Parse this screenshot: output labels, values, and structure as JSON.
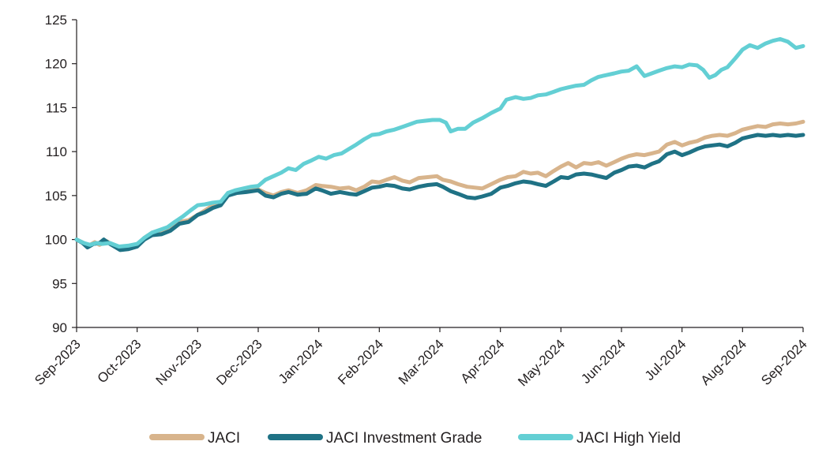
{
  "chart_data": {
    "type": "line",
    "title": "",
    "xlabel": "",
    "ylabel": "",
    "ylim": [
      90,
      125
    ],
    "yticks": [
      90,
      95,
      100,
      105,
      110,
      115,
      120,
      125
    ],
    "xticks": [
      "Sep-2023",
      "Oct-2023",
      "Nov-2023",
      "Dec-2023",
      "Jan-2024",
      "Feb-2024",
      "Mar-2024",
      "Apr-2024",
      "May-2024",
      "Jun-2024",
      "Jul-2024",
      "Aug-2024",
      "Sep-2024"
    ],
    "grid": false,
    "legend_position": "bottom",
    "series": [
      {
        "name": "JACI",
        "color": "#d8b48c",
        "values": [
          [
            0,
            100
          ],
          [
            0.12,
            99.6
          ],
          [
            0.2,
            99.3
          ],
          [
            0.3,
            99.7
          ],
          [
            0.38,
            99.4
          ],
          [
            0.5,
            99.8
          ],
          [
            0.62,
            99.3
          ],
          [
            0.75,
            99
          ],
          [
            0.85,
            99.1
          ],
          [
            1,
            99.4
          ],
          [
            1.12,
            100.2
          ],
          [
            1.25,
            100.8
          ],
          [
            1.4,
            101
          ],
          [
            1.55,
            101.2
          ],
          [
            1.7,
            102
          ],
          [
            1.85,
            102.2
          ],
          [
            2,
            102.8
          ],
          [
            2.12,
            103.3
          ],
          [
            2.25,
            103.9
          ],
          [
            2.38,
            104.1
          ],
          [
            2.5,
            105.2
          ],
          [
            2.65,
            105.5
          ],
          [
            2.8,
            105.6
          ],
          [
            3,
            105.7
          ],
          [
            3.12,
            105.3
          ],
          [
            3.25,
            105
          ],
          [
            3.38,
            105.4
          ],
          [
            3.5,
            105.6
          ],
          [
            3.65,
            105.3
          ],
          [
            3.8,
            105.6
          ],
          [
            3.95,
            106.2
          ],
          [
            4.05,
            106.1
          ],
          [
            4.2,
            106
          ],
          [
            4.35,
            105.8
          ],
          [
            4.5,
            105.9
          ],
          [
            4.62,
            105.6
          ],
          [
            4.75,
            106
          ],
          [
            4.88,
            106.6
          ],
          [
            5,
            106.5
          ],
          [
            5.12,
            106.8
          ],
          [
            5.25,
            107.1
          ],
          [
            5.38,
            106.7
          ],
          [
            5.5,
            106.5
          ],
          [
            5.65,
            107
          ],
          [
            5.8,
            107.1
          ],
          [
            5.95,
            107.2
          ],
          [
            6.05,
            106.8
          ],
          [
            6.18,
            106.6
          ],
          [
            6.3,
            106.3
          ],
          [
            6.45,
            106
          ],
          [
            6.58,
            105.9
          ],
          [
            6.7,
            105.8
          ],
          [
            6.85,
            106.3
          ],
          [
            7,
            106.8
          ],
          [
            7.12,
            107.1
          ],
          [
            7.25,
            107.2
          ],
          [
            7.38,
            107.7
          ],
          [
            7.5,
            107.5
          ],
          [
            7.62,
            107.6
          ],
          [
            7.75,
            107.2
          ],
          [
            7.88,
            107.8
          ],
          [
            8,
            108.3
          ],
          [
            8.12,
            108.7
          ],
          [
            8.25,
            108.2
          ],
          [
            8.38,
            108.7
          ],
          [
            8.5,
            108.6
          ],
          [
            8.62,
            108.8
          ],
          [
            8.75,
            108.4
          ],
          [
            8.88,
            108.8
          ],
          [
            9,
            109.2
          ],
          [
            9.12,
            109.5
          ],
          [
            9.25,
            109.7
          ],
          [
            9.38,
            109.6
          ],
          [
            9.5,
            109.8
          ],
          [
            9.62,
            110
          ],
          [
            9.75,
            110.8
          ],
          [
            9.88,
            111.1
          ],
          [
            10,
            110.7
          ],
          [
            10.12,
            111
          ],
          [
            10.25,
            111.2
          ],
          [
            10.38,
            111.6
          ],
          [
            10.5,
            111.8
          ],
          [
            10.62,
            111.9
          ],
          [
            10.75,
            111.8
          ],
          [
            10.88,
            112.1
          ],
          [
            11,
            112.5
          ],
          [
            11.12,
            112.7
          ],
          [
            11.25,
            112.9
          ],
          [
            11.38,
            112.8
          ],
          [
            11.5,
            113.1
          ],
          [
            11.62,
            113.2
          ],
          [
            11.75,
            113.1
          ],
          [
            11.88,
            113.2
          ],
          [
            12,
            113.4
          ]
        ]
      },
      {
        "name": "JACI Investment Grade",
        "color": "#1f7285",
        "values": [
          [
            0,
            100
          ],
          [
            0.1,
            99.6
          ],
          [
            0.18,
            99.1
          ],
          [
            0.28,
            99.5
          ],
          [
            0.38,
            99.6
          ],
          [
            0.45,
            100
          ],
          [
            0.55,
            99.5
          ],
          [
            0.65,
            99.1
          ],
          [
            0.72,
            98.8
          ],
          [
            0.85,
            98.9
          ],
          [
            1,
            99.2
          ],
          [
            1.12,
            100
          ],
          [
            1.25,
            100.5
          ],
          [
            1.4,
            100.6
          ],
          [
            1.55,
            101
          ],
          [
            1.7,
            101.8
          ],
          [
            1.85,
            102
          ],
          [
            2,
            102.8
          ],
          [
            2.12,
            103.1
          ],
          [
            2.25,
            103.6
          ],
          [
            2.38,
            103.9
          ],
          [
            2.5,
            105
          ],
          [
            2.65,
            105.3
          ],
          [
            2.8,
            105.4
          ],
          [
            3,
            105.6
          ],
          [
            3.12,
            105
          ],
          [
            3.25,
            104.8
          ],
          [
            3.38,
            105.2
          ],
          [
            3.5,
            105.4
          ],
          [
            3.65,
            105.1
          ],
          [
            3.8,
            105.2
          ],
          [
            3.95,
            105.8
          ],
          [
            4.05,
            105.6
          ],
          [
            4.2,
            105.2
          ],
          [
            4.35,
            105.4
          ],
          [
            4.5,
            105.2
          ],
          [
            4.62,
            105.1
          ],
          [
            4.75,
            105.5
          ],
          [
            4.88,
            105.9
          ],
          [
            5,
            106
          ],
          [
            5.12,
            106.2
          ],
          [
            5.25,
            106.1
          ],
          [
            5.38,
            105.8
          ],
          [
            5.5,
            105.7
          ],
          [
            5.65,
            106
          ],
          [
            5.8,
            106.2
          ],
          [
            5.95,
            106.3
          ],
          [
            6.05,
            106
          ],
          [
            6.18,
            105.5
          ],
          [
            6.3,
            105.2
          ],
          [
            6.45,
            104.8
          ],
          [
            6.58,
            104.7
          ],
          [
            6.7,
            104.9
          ],
          [
            6.85,
            105.2
          ],
          [
            7,
            105.9
          ],
          [
            7.12,
            106.1
          ],
          [
            7.25,
            106.4
          ],
          [
            7.38,
            106.6
          ],
          [
            7.5,
            106.5
          ],
          [
            7.62,
            106.3
          ],
          [
            7.75,
            106.1
          ],
          [
            7.88,
            106.6
          ],
          [
            8,
            107.1
          ],
          [
            8.12,
            107
          ],
          [
            8.25,
            107.4
          ],
          [
            8.38,
            107.5
          ],
          [
            8.5,
            107.4
          ],
          [
            8.62,
            107.2
          ],
          [
            8.75,
            107
          ],
          [
            8.88,
            107.6
          ],
          [
            9,
            107.9
          ],
          [
            9.12,
            108.3
          ],
          [
            9.25,
            108.4
          ],
          [
            9.38,
            108.2
          ],
          [
            9.5,
            108.6
          ],
          [
            9.62,
            108.9
          ],
          [
            9.75,
            109.7
          ],
          [
            9.88,
            110
          ],
          [
            10,
            109.6
          ],
          [
            10.12,
            109.9
          ],
          [
            10.25,
            110.3
          ],
          [
            10.38,
            110.6
          ],
          [
            10.5,
            110.7
          ],
          [
            10.62,
            110.8
          ],
          [
            10.75,
            110.6
          ],
          [
            10.88,
            111
          ],
          [
            11,
            111.5
          ],
          [
            11.12,
            111.7
          ],
          [
            11.25,
            111.9
          ],
          [
            11.38,
            111.8
          ],
          [
            11.5,
            111.9
          ],
          [
            11.62,
            111.8
          ],
          [
            11.75,
            111.9
          ],
          [
            11.88,
            111.8
          ],
          [
            12,
            111.9
          ]
        ]
      },
      {
        "name": "JACI High Yield",
        "color": "#63cfd4",
        "values": [
          [
            0,
            100
          ],
          [
            0.12,
            99.6
          ],
          [
            0.22,
            99.4
          ],
          [
            0.32,
            99.6
          ],
          [
            0.42,
            99.5
          ],
          [
            0.55,
            99.6
          ],
          [
            0.7,
            99.2
          ],
          [
            0.85,
            99.3
          ],
          [
            1,
            99.5
          ],
          [
            1.12,
            100.2
          ],
          [
            1.25,
            100.8
          ],
          [
            1.38,
            101.1
          ],
          [
            1.5,
            101.4
          ],
          [
            1.62,
            102
          ],
          [
            1.75,
            102.6
          ],
          [
            1.88,
            103.3
          ],
          [
            2,
            103.9
          ],
          [
            2.12,
            104
          ],
          [
            2.25,
            104.2
          ],
          [
            2.38,
            104.3
          ],
          [
            2.5,
            105.3
          ],
          [
            2.62,
            105.6
          ],
          [
            2.75,
            105.8
          ],
          [
            2.88,
            106
          ],
          [
            3,
            106.1
          ],
          [
            3.12,
            106.8
          ],
          [
            3.25,
            107.2
          ],
          [
            3.38,
            107.6
          ],
          [
            3.5,
            108.1
          ],
          [
            3.62,
            107.9
          ],
          [
            3.75,
            108.6
          ],
          [
            3.88,
            109
          ],
          [
            4,
            109.4
          ],
          [
            4.12,
            109.2
          ],
          [
            4.25,
            109.6
          ],
          [
            4.38,
            109.8
          ],
          [
            4.5,
            110.3
          ],
          [
            4.62,
            110.8
          ],
          [
            4.75,
            111.4
          ],
          [
            4.88,
            111.9
          ],
          [
            5,
            112
          ],
          [
            5.12,
            112.3
          ],
          [
            5.25,
            112.5
          ],
          [
            5.38,
            112.8
          ],
          [
            5.5,
            113.1
          ],
          [
            5.62,
            113.4
          ],
          [
            5.75,
            113.5
          ],
          [
            5.88,
            113.6
          ],
          [
            6,
            113.6
          ],
          [
            6.1,
            113.3
          ],
          [
            6.18,
            112.3
          ],
          [
            6.3,
            112.6
          ],
          [
            6.42,
            112.6
          ],
          [
            6.55,
            113.3
          ],
          [
            6.7,
            113.8
          ],
          [
            6.85,
            114.4
          ],
          [
            7,
            114.9
          ],
          [
            7.1,
            115.9
          ],
          [
            7.25,
            116.2
          ],
          [
            7.38,
            116
          ],
          [
            7.5,
            116.1
          ],
          [
            7.62,
            116.4
          ],
          [
            7.75,
            116.5
          ],
          [
            7.88,
            116.8
          ],
          [
            8,
            117.1
          ],
          [
            8.12,
            117.3
          ],
          [
            8.25,
            117.5
          ],
          [
            8.38,
            117.6
          ],
          [
            8.5,
            118.1
          ],
          [
            8.62,
            118.5
          ],
          [
            8.75,
            118.7
          ],
          [
            8.88,
            118.9
          ],
          [
            9,
            119.1
          ],
          [
            9.12,
            119.2
          ],
          [
            9.25,
            119.7
          ],
          [
            9.38,
            118.6
          ],
          [
            9.5,
            118.9
          ],
          [
            9.62,
            119.2
          ],
          [
            9.75,
            119.5
          ],
          [
            9.88,
            119.7
          ],
          [
            10,
            119.6
          ],
          [
            10.12,
            119.9
          ],
          [
            10.25,
            119.8
          ],
          [
            10.35,
            119.3
          ],
          [
            10.45,
            118.4
          ],
          [
            10.55,
            118.7
          ],
          [
            10.65,
            119.3
          ],
          [
            10.75,
            119.6
          ],
          [
            10.88,
            120.6
          ],
          [
            11,
            121.6
          ],
          [
            11.12,
            122.1
          ],
          [
            11.25,
            121.8
          ],
          [
            11.38,
            122.3
          ],
          [
            11.5,
            122.6
          ],
          [
            11.62,
            122.8
          ],
          [
            11.75,
            122.5
          ],
          [
            11.88,
            121.8
          ],
          [
            12,
            122
          ]
        ]
      }
    ]
  }
}
